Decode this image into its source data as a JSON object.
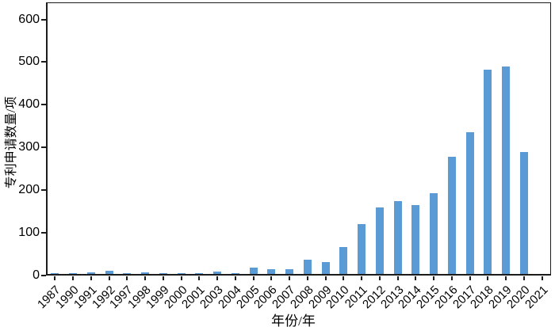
{
  "chart_data": {
    "type": "bar",
    "title": "",
    "xlabel": "年份/年",
    "ylabel": "专利申请数量/项",
    "categories": [
      "1987",
      "1990",
      "1991",
      "1992",
      "1997",
      "1998",
      "1999",
      "2000",
      "2001",
      "2003",
      "2004",
      "2005",
      "2006",
      "2007",
      "2008",
      "2009",
      "2010",
      "2011",
      "2012",
      "2013",
      "2014",
      "2015",
      "2016",
      "2017",
      "2018",
      "2019",
      "2020",
      "2021"
    ],
    "values": [
      1,
      1,
      4,
      8,
      1,
      3,
      1,
      2,
      1,
      6,
      2,
      15,
      12,
      11,
      33,
      27,
      64,
      117,
      155,
      170,
      161,
      189,
      275,
      333,
      478,
      487,
      285,
      0
    ],
    "ylim": [
      0,
      640
    ],
    "yticks": [
      0,
      100,
      200,
      300,
      400,
      500,
      600
    ],
    "grid": false,
    "legend_position": "none",
    "bar_color": "#5B9BD5",
    "axis_color": "#1c1c1c",
    "tick_label_color": "#000000"
  }
}
